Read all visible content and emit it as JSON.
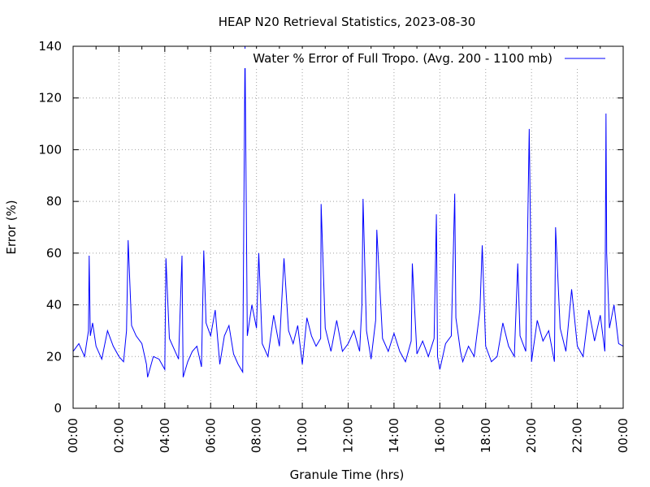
{
  "chart_data": {
    "type": "line",
    "title": "HEAP N20 Retrieval Statistics, 2023-08-30",
    "xlabel": "Granule Time (hrs)",
    "ylabel": "Error (%)",
    "xlim": [
      0,
      24
    ],
    "ylim": [
      0,
      140
    ],
    "x_ticks": [
      0,
      2,
      4,
      6,
      8,
      10,
      12,
      14,
      16,
      18,
      20,
      22,
      24
    ],
    "x_tick_labels": [
      "00:00",
      "02:00",
      "04:00",
      "06:00",
      "08:00",
      "10:00",
      "12:00",
      "14:00",
      "16:00",
      "18:00",
      "20:00",
      "22:00",
      "00:00"
    ],
    "y_ticks": [
      0,
      20,
      40,
      60,
      80,
      100,
      120,
      140
    ],
    "y_tick_labels": [
      "0",
      "20",
      "40",
      "60",
      "80",
      "100",
      "120",
      "140"
    ],
    "grid": true,
    "legend_position": "top-right",
    "series": [
      {
        "name": "Water % Error of Full Tropo. (Avg. 200 - 1100 mb)",
        "color": "#0000ff",
        "x": [
          0.0,
          0.25,
          0.5,
          0.67,
          0.7,
          0.75,
          0.85,
          1.0,
          1.25,
          1.5,
          1.75,
          2.0,
          2.2,
          2.33,
          2.4,
          2.55,
          2.75,
          3.0,
          3.2,
          3.25,
          3.5,
          3.75,
          4.0,
          4.05,
          4.2,
          4.4,
          4.6,
          4.75,
          4.8,
          5.0,
          5.2,
          5.4,
          5.6,
          5.7,
          5.8,
          6.0,
          6.2,
          6.4,
          6.6,
          6.8,
          7.0,
          7.2,
          7.4,
          7.5,
          7.52,
          7.6,
          7.8,
          8.0,
          8.1,
          8.25,
          8.5,
          8.75,
          9.0,
          9.2,
          9.4,
          9.6,
          9.8,
          10.0,
          10.2,
          10.4,
          10.6,
          10.8,
          10.82,
          11.0,
          11.25,
          11.5,
          11.75,
          12.0,
          12.25,
          12.5,
          12.6,
          12.65,
          12.8,
          13.0,
          13.2,
          13.25,
          13.5,
          13.75,
          14.0,
          14.25,
          14.5,
          14.75,
          14.8,
          15.0,
          15.25,
          15.5,
          15.75,
          15.85,
          15.9,
          16.0,
          16.25,
          16.5,
          16.65,
          16.7,
          16.9,
          17.0,
          17.25,
          17.5,
          17.75,
          17.85,
          18.0,
          18.25,
          18.5,
          18.75,
          19.0,
          19.25,
          19.4,
          19.5,
          19.75,
          19.9,
          19.95,
          20.0,
          20.25,
          20.5,
          20.75,
          21.0,
          21.05,
          21.25,
          21.5,
          21.75,
          22.0,
          22.25,
          22.5,
          22.75,
          23.0,
          23.2,
          23.25,
          23.28,
          23.4,
          23.6,
          23.8,
          24.0
        ],
        "values": [
          22,
          25,
          20,
          30,
          59,
          28,
          33,
          24,
          19,
          30,
          24,
          20,
          18,
          30,
          65,
          32,
          28,
          25,
          17,
          12,
          20,
          19,
          15,
          58,
          27,
          23,
          19,
          59,
          12,
          18,
          22,
          24,
          16,
          61,
          33,
          28,
          38,
          17,
          28,
          32,
          21,
          17,
          14,
          140,
          116,
          28,
          40,
          31,
          60,
          25,
          20,
          36,
          24,
          58,
          30,
          25,
          32,
          17,
          35,
          28,
          24,
          27,
          79,
          31,
          22,
          34,
          22,
          25,
          30,
          22,
          40,
          81,
          30,
          19,
          34,
          69,
          27,
          22,
          29,
          22,
          18,
          26,
          56,
          21,
          26,
          20,
          27,
          75,
          20,
          15,
          25,
          28,
          83,
          35,
          22,
          18,
          24,
          20,
          38,
          63,
          24,
          18,
          20,
          33,
          24,
          20,
          56,
          28,
          22,
          108,
          73,
          18,
          34,
          26,
          30,
          18,
          70,
          31,
          22,
          46,
          24,
          20,
          38,
          26,
          36,
          22,
          114,
          60,
          31,
          40,
          25,
          24
        ]
      }
    ]
  }
}
